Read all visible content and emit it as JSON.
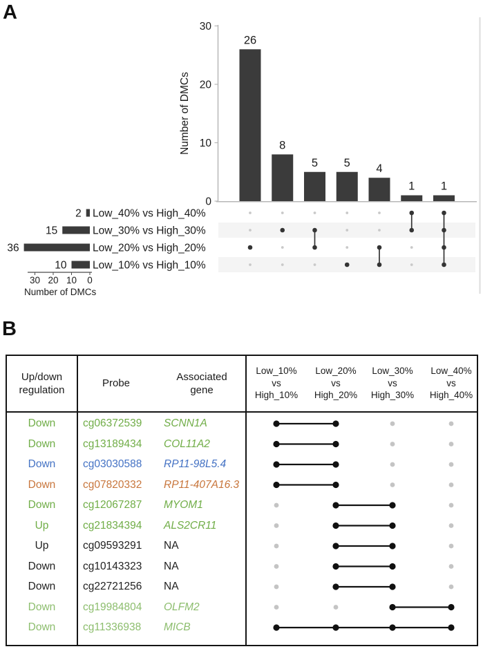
{
  "figure": {
    "panel_a_label": "A",
    "panel_b_label": "B"
  },
  "colors": {
    "bar": "#3b3b3b",
    "active_dot_a": "#343434",
    "inactive_dot_a": "#c9c9c9",
    "active_dot_b": "#111111",
    "inactive_dot_b": "#c4c4c4",
    "stripe": "#f4f4f4",
    "axis_line": "#b7b7b7",
    "side_line": "#dcdcdc",
    "table_border": "#141414",
    "text": "#1a1a1a",
    "green": "#70AD47",
    "light_green": "#8CBD6D",
    "blue": "#4472C4",
    "orange": "#C8763C",
    "black": "#1f1f1f"
  },
  "chart_data": [
    {
      "name": "intersection-size-chart",
      "type": "bar",
      "title": "",
      "xlabel": "",
      "ylabel": "Number of DMCs",
      "ylim": [
        0,
        30
      ],
      "yticks": [
        0,
        10,
        20,
        30
      ],
      "values": [
        26,
        8,
        5,
        5,
        4,
        1,
        1
      ],
      "set_order_rows": [
        "Low_40% vs High_40%",
        "Low_30% vs High_30%",
        "Low_20% vs High_20%",
        "Low_10% vs High_10%"
      ],
      "memberships": [
        [
          2
        ],
        [
          1
        ],
        [
          1,
          2
        ],
        [
          3
        ],
        [
          2,
          3
        ],
        [
          0,
          1
        ],
        [
          0,
          1,
          2,
          3
        ]
      ],
      "striped_rows": [
        1,
        3
      ],
      "grid": false,
      "legend": "none"
    },
    {
      "name": "set-size-chart",
      "type": "bar",
      "orientation": "horizontal",
      "xlabel": "Number of DMCs",
      "xticks": [
        30,
        20,
        10,
        0
      ],
      "categories": [
        "Low_40% vs High_40%",
        "Low_30% vs High_30%",
        "Low_20% vs High_20%",
        "Low_10% vs High_10%"
      ],
      "values": [
        2,
        15,
        36,
        10
      ]
    },
    {
      "name": "dmc-table",
      "type": "table",
      "headers": {
        "regulation": "Up/down\nregulation",
        "probe": "Probe",
        "gene": "Associated\ngene",
        "comparisons": [
          "Low_10%\nvs\nHigh_10%",
          "Low_20%\nvs\nHigh_20%",
          "Low_30%\nvs\nHigh_30%",
          "Low_40%\nvs\nHigh_40%"
        ]
      },
      "rows": [
        {
          "regulation": "Down",
          "probe": "cg06372539",
          "gene": "SCNN1A",
          "color": "green",
          "sets": [
            0,
            1
          ]
        },
        {
          "regulation": "Down",
          "probe": "cg13189434",
          "gene": "COL11A2",
          "color": "green",
          "sets": [
            0,
            1
          ]
        },
        {
          "regulation": "Down",
          "probe": "cg03030588",
          "gene": "RP11-98L5.4",
          "color": "blue",
          "sets": [
            0,
            1
          ]
        },
        {
          "regulation": "Down",
          "probe": "cg07820332",
          "gene": "RP11-407A16.3",
          "color": "orange",
          "sets": [
            0,
            1
          ]
        },
        {
          "regulation": "Down",
          "probe": "cg12067287",
          "gene": "MYOM1",
          "color": "green",
          "sets": [
            1,
            2
          ]
        },
        {
          "regulation": "Up",
          "probe": "cg21834394",
          "gene": "ALS2CR11",
          "color": "green",
          "sets": [
            1,
            2
          ]
        },
        {
          "regulation": "Up",
          "probe": "cg09593291",
          "gene": "NA",
          "color": "black",
          "sets": [
            1,
            2
          ]
        },
        {
          "regulation": "Down",
          "probe": "cg10143323",
          "gene": "NA",
          "color": "black",
          "sets": [
            1,
            2
          ]
        },
        {
          "regulation": "Down",
          "probe": "cg22721256",
          "gene": "NA",
          "color": "black",
          "sets": [
            1,
            2
          ]
        },
        {
          "regulation": "Down",
          "probe": "cg19984804",
          "gene": "OLFM2",
          "color": "light_green",
          "sets": [
            2,
            3
          ]
        },
        {
          "regulation": "Down",
          "probe": "cg11336938",
          "gene": "MICB",
          "color": "light_green",
          "sets": [
            0,
            1,
            2,
            3
          ]
        }
      ]
    }
  ]
}
